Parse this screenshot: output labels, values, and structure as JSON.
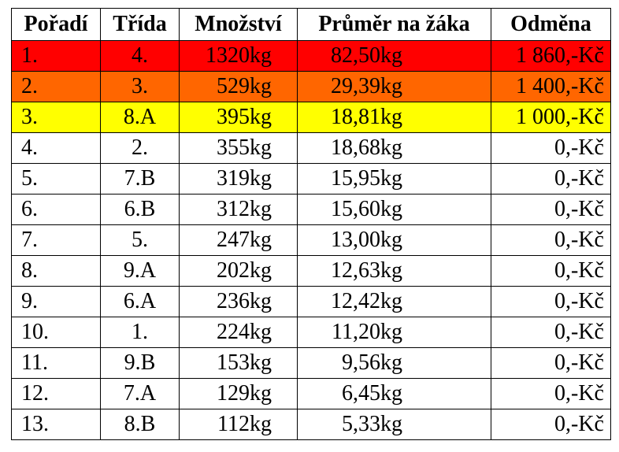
{
  "table": {
    "header": [
      "Pořadí",
      "Třída",
      "Množství",
      "Průměr na žáka",
      "Odměna"
    ],
    "rows": [
      [
        "1.",
        "4.",
        "1320kg",
        "82,50kg",
        "1 860,-Kč"
      ],
      [
        "2.",
        "3.",
        "529kg",
        "29,39kg",
        "1 400,-Kč"
      ],
      [
        "3.",
        "8.A",
        "395kg",
        "18,81kg",
        "1 000,-Kč"
      ],
      [
        "4.",
        "2.",
        "355kg",
        "18,68kg",
        "0,-Kč"
      ],
      [
        "5.",
        "7.B",
        "319kg",
        "15,95kg",
        "0,-Kč"
      ],
      [
        "6.",
        "6.B",
        "312kg",
        "15,60kg",
        "0,-Kč"
      ],
      [
        "7.",
        "5.",
        "247kg",
        "13,00kg",
        "0,-Kč"
      ],
      [
        "8.",
        "9.A",
        "202kg",
        "12,63kg",
        "0,-Kč"
      ],
      [
        "9.",
        "6.A",
        "236kg",
        "12,42kg",
        "0,-Kč"
      ],
      [
        "10.",
        "1.",
        "224kg",
        "11,20kg",
        "0,-Kč"
      ],
      [
        "11.",
        "9.B",
        "153kg",
        "9,56kg",
        "0,-Kč"
      ],
      [
        "12.",
        "7.A",
        "129kg",
        "6,45kg",
        "0,-Kč"
      ],
      [
        "13.",
        "8.B",
        "112kg",
        "5,33kg",
        "0,-Kč"
      ]
    ]
  }
}
